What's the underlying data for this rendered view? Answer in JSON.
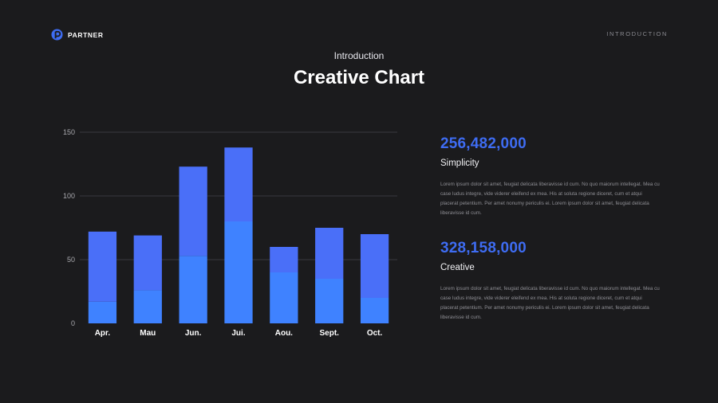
{
  "logo": {
    "text": "PARTNER"
  },
  "nav": {
    "label": "INTRODUCTION"
  },
  "header": {
    "subtitle": "Introduction",
    "title": "Creative Chart"
  },
  "colors": {
    "accent": "#3e6cf2",
    "bar_top": "#4a6ff8",
    "bar_bottom": "#3f82ff",
    "background": "#1b1b1d"
  },
  "stats": [
    {
      "value": "256,482,000",
      "label": "Simplicity",
      "text": "Lorem ipsum dolor sit amet, feugiat delicata liberavisse id cum. No quo maiorum intellegat. Mea cu case ludus integre, vide viderer eleifend ex mea. His at soluta regione diceret, cum et atqui placerat petentium. Per amet nonumy periculis ei. Lorem ipsum dolor sit amet, feugiat delicata liberavisse id cum."
    },
    {
      "value": "328,158,000",
      "label": "Creative",
      "text": "Lorem ipsum dolor sit amet, feugiat delicata liberavisse id cum. No quo maiorum intellegat. Mea cu case ludus integre, vide viderer eleifend ex mea. His at soluta regione diceret, cum et atqui placerat petentium. Per amet nonumy periculis ei. Lorem ipsum dolor sit amet, feugiat delicata liberavisse id cum."
    }
  ],
  "chart_data": {
    "type": "bar",
    "stacked": true,
    "categories": [
      "Apr.",
      "Mau",
      "Jun.",
      "Jui.",
      "Aou.",
      "Sept.",
      "Oct."
    ],
    "series": [
      {
        "values": [
          17,
          26,
          53,
          80,
          40,
          35,
          20
        ],
        "color": "#3f82ff"
      },
      {
        "values": [
          55,
          43,
          70,
          58,
          20,
          40,
          50
        ],
        "color": "#4a6ff8"
      }
    ],
    "yticks": [
      0,
      50,
      100,
      150
    ],
    "ylim": [
      0,
      150
    ],
    "grid": true,
    "title": "",
    "xlabel": "",
    "ylabel": ""
  }
}
